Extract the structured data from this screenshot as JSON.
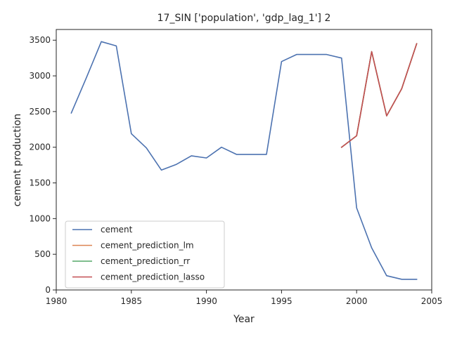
{
  "chart_data": {
    "type": "line",
    "title": "17_SIN ['population', 'gdp_lag_1'] 2",
    "xlabel": "Year",
    "ylabel": "cement production",
    "xlim": [
      1980,
      2005
    ],
    "ylim": [
      0,
      3650
    ],
    "xticks": [
      1980,
      1985,
      1990,
      1995,
      2000,
      2005
    ],
    "yticks": [
      0,
      500,
      1000,
      1500,
      2000,
      2500,
      3000,
      3500
    ],
    "grid": false,
    "legend_position": "lower-left",
    "series": [
      {
        "name": "cement",
        "color": "#4c72b0",
        "x": [
          1981,
          1982,
          1983,
          1984,
          1985,
          1986,
          1987,
          1988,
          1989,
          1990,
          1991,
          1992,
          1993,
          1994,
          1995,
          1996,
          1997,
          1998,
          1999,
          2000,
          2001,
          2002,
          2003,
          2004
        ],
        "y": [
          2480,
          2970,
          3480,
          3420,
          2190,
          1990,
          1680,
          1760,
          1880,
          1850,
          2000,
          1900,
          1900,
          1900,
          3200,
          3300,
          3300,
          3300,
          3250,
          1150,
          590,
          200,
          150,
          150
        ]
      },
      {
        "name": "cement_prediction_lm",
        "color": "#dd8452",
        "x": [
          1999,
          2000,
          2001,
          2002,
          2003,
          2004
        ],
        "y": [
          2000,
          2160,
          3340,
          2440,
          2820,
          3450
        ]
      },
      {
        "name": "cement_prediction_rr",
        "color": "#55a868",
        "x": [
          1999,
          2000,
          2001,
          2002,
          2003,
          2004
        ],
        "y": [
          2000,
          2160,
          3340,
          2440,
          2820,
          3450
        ]
      },
      {
        "name": "cement_prediction_lasso",
        "color": "#c44e52",
        "x": [
          1999,
          2000,
          2001,
          2002,
          2003,
          2004
        ],
        "y": [
          2000,
          2160,
          3340,
          2440,
          2820,
          3450
        ]
      }
    ]
  }
}
